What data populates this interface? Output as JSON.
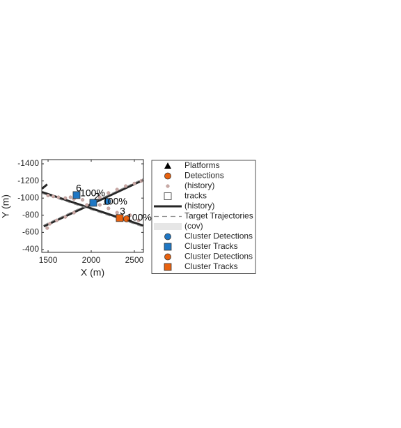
{
  "chart_data": {
    "type": "scatter",
    "xlabel": "X (m)",
    "ylabel": "Y (m)",
    "xlim": [
      1427,
      2605
    ],
    "ylim": [
      -1449,
      -367
    ],
    "y_reversed": true,
    "xticks": [
      1500,
      2000,
      2500
    ],
    "yticks": [
      -1400,
      -1200,
      -1000,
      -800,
      -600,
      -400
    ],
    "series": [
      {
        "marker": "line",
        "color": "#262626",
        "x": [
          1430,
          2600,
          null,
          1450,
          2600,
          null,
          1430,
          1490
        ],
        "y": [
          -1070,
          -680,
          null,
          -670,
          -1210,
          null,
          -1110,
          -1160
        ]
      },
      {
        "marker": "dashed",
        "color": "#8c8c8c",
        "x": [
          1430,
          2600,
          null,
          1450,
          2600
        ],
        "y": [
          -1055,
          -665,
          null,
          -685,
          -1225
        ]
      },
      {
        "marker": "dot",
        "color": "#c9a9a6",
        "x": [
          1500,
          1560,
          1620,
          1700,
          1760,
          1800,
          1900,
          2000,
          2100,
          2200,
          2300,
          2450,
          2550,
          1490,
          1520,
          1600,
          1700,
          1800,
          2200,
          2300,
          2400,
          2500,
          2580,
          2100,
          1950
        ],
        "y": [
          -1030,
          -1020,
          -1010,
          -1000,
          -1010,
          -990,
          -980,
          -960,
          -920,
          -880,
          -830,
          -800,
          -740,
          -650,
          -700,
          -740,
          -780,
          -830,
          -1060,
          -1100,
          -1140,
          -1170,
          -1200,
          -1010,
          -920
        ]
      },
      {
        "marker": "circle",
        "color": "#1f77c4",
        "x": [
          2190
        ],
        "y": [
          -961
        ]
      },
      {
        "marker": "square",
        "color": "#1f77c4",
        "x": [
          1830,
          2024
        ],
        "y": [
          -1035,
          -945
        ]
      },
      {
        "marker": "circle",
        "color": "#e8620f",
        "x": [
          2410
        ],
        "y": [
          -758
        ]
      },
      {
        "marker": "square",
        "color": "#e8620f",
        "x": [
          2330
        ],
        "y": [
          -767
        ]
      }
    ],
    "annotations": [
      {
        "text": "6",
        "x": 1855,
        "y": -1108
      },
      {
        "text": "100%",
        "x": 2016,
        "y": -1051
      },
      {
        "text": "2",
        "x": 2064,
        "y": -1010
      },
      {
        "text": "100%",
        "x": 2274,
        "y": -953
      },
      {
        "text": "3",
        "x": 2363,
        "y": -840
      },
      {
        "text": "100%",
        "x": 2556,
        "y": -767
      }
    ],
    "legend": {
      "location": "outside-right",
      "entries": [
        {
          "label": "Platforms",
          "marker": "triangle",
          "color": "#000000"
        },
        {
          "label": "Detections",
          "marker": "circle",
          "color": "#e8620f"
        },
        {
          "label": "(history)",
          "marker": "dot",
          "color": "#c9a9a6"
        },
        {
          "label": "tracks",
          "marker": "square",
          "color": "#ffffff"
        },
        {
          "label": "(history)",
          "marker": "line",
          "color": "#262626"
        },
        {
          "label": "Target Trajectories",
          "marker": "dashed",
          "color": "#8c8c8c"
        },
        {
          "label": "(cov)",
          "marker": "patch",
          "color": "#e6e6e6"
        },
        {
          "label": "Cluster Detections",
          "marker": "circle",
          "color": "#1f77c4"
        },
        {
          "label": "Cluster Tracks",
          "marker": "square",
          "color": "#1f77c4"
        },
        {
          "label": "Cluster Detections",
          "marker": "circle",
          "color": "#e8620f"
        },
        {
          "label": "Cluster Tracks",
          "marker": "square",
          "color": "#e8620f"
        }
      ]
    }
  }
}
